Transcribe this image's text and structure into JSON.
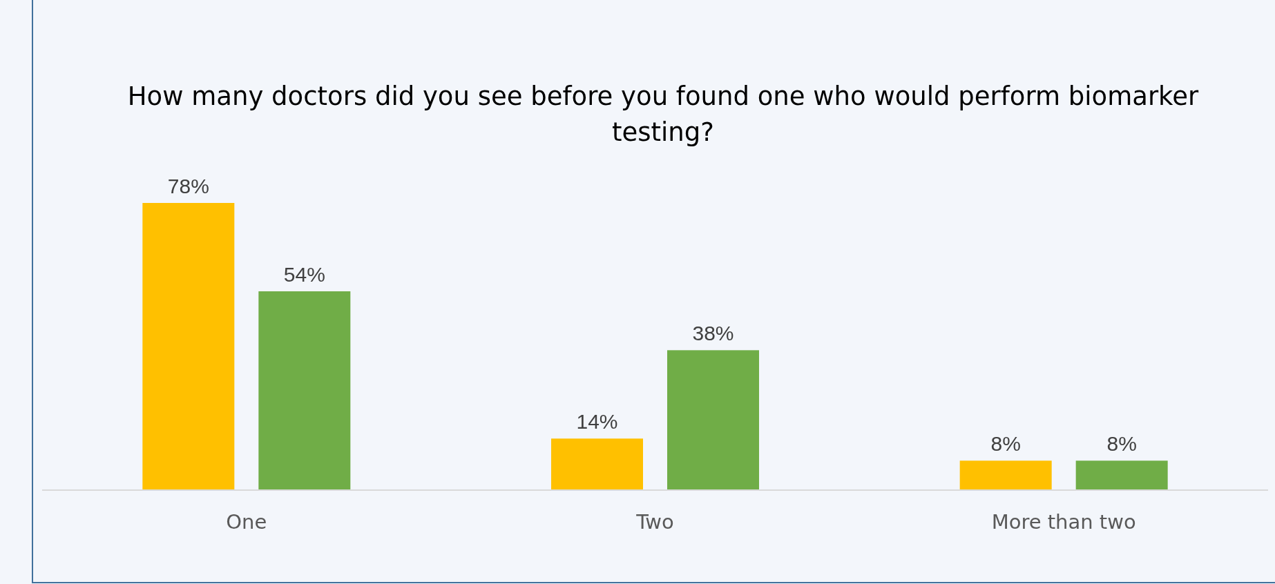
{
  "chart_data": {
    "type": "bar",
    "title": "How many doctors did you see before you found one who would perform biomarker testing?",
    "categories": [
      "One",
      "Two",
      "More than two"
    ],
    "series": [
      {
        "color": "#ffc000",
        "values": [
          78,
          14,
          8
        ],
        "value_labels": [
          "78%",
          "14%",
          "8%"
        ]
      },
      {
        "color": "#70ad47",
        "values": [
          54,
          38,
          8
        ],
        "value_labels": [
          "54%",
          "38%",
          "8%"
        ]
      }
    ]
  }
}
